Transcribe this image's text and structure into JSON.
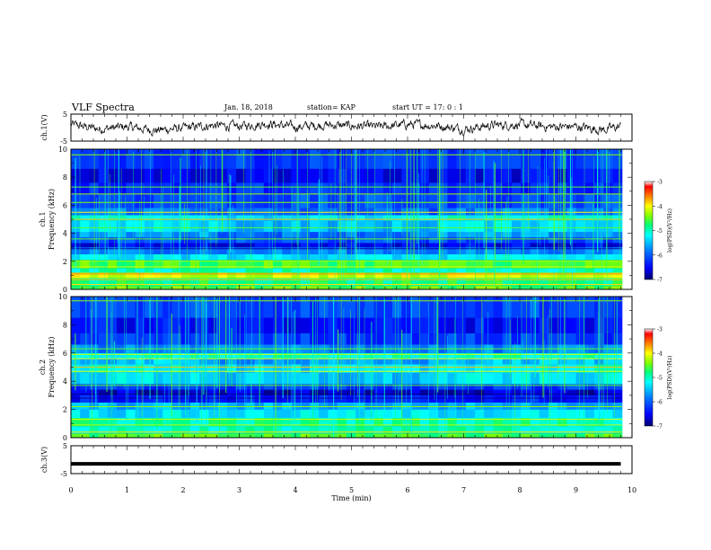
{
  "header": {
    "title": "VLF Spectra",
    "date": "Jan. 18, 2018",
    "station": "station= KAP",
    "start": "start  UT =   17: 0  : 1"
  },
  "colors": {
    "spectrogram_scale": [
      "#00007a",
      "#0000ff",
      "#0080ff",
      "#00e0ff",
      "#00ff90",
      "#80ff00",
      "#ffff00",
      "#ff8000",
      "#ff0000",
      "#ffffff"
    ],
    "waveform": "#000000"
  },
  "chart_data": [
    {
      "type": "line",
      "name": "ch1-waveform",
      "ylabel": "ch.1(V)",
      "ylim": [
        -5,
        5
      ],
      "yticks": [
        "5",
        "-5"
      ],
      "xlim": [
        0,
        10
      ],
      "description_values": {
        "x": [
          0,
          0.5,
          1,
          1.5,
          2,
          2.5,
          3,
          3.5,
          4,
          4.5,
          5,
          5.5,
          6,
          6.5,
          7,
          7.5,
          8,
          8.5,
          9,
          9.5,
          9.8
        ],
        "y": [
          1.2,
          -0.5,
          0.3,
          -1.0,
          -0.2,
          0.8,
          0.5,
          1.5,
          0.2,
          1.0,
          0.6,
          0.3,
          1.2,
          0.8,
          -0.6,
          0.9,
          1.1,
          0.3,
          0.4,
          -0.8,
          0.5
        ]
      }
    },
    {
      "type": "heatmap",
      "name": "ch1-spectrogram",
      "ylabel_top": "ch.1",
      "ylabel": "Frequency (kHz)",
      "ylim": [
        0,
        10
      ],
      "yticks": [
        "0",
        "2",
        "4",
        "6",
        "8",
        "10"
      ],
      "xlim": [
        0,
        10
      ],
      "colorbar": {
        "label": "log(PSD)(V²/Hz)",
        "range": [
          -7,
          -3
        ],
        "ticks": [
          "-3",
          "-4",
          "-5",
          "-6",
          "-7"
        ]
      }
    },
    {
      "type": "heatmap",
      "name": "ch2-spectrogram",
      "ylabel_top": "ch.2",
      "ylabel": "Frequency (kHz)",
      "ylim": [
        0,
        10
      ],
      "yticks": [
        "0",
        "2",
        "4",
        "6",
        "8",
        "10"
      ],
      "xlim": [
        0,
        10
      ],
      "colorbar": {
        "label": "log(PSD)(V²/Hz)",
        "range": [
          -7,
          -3
        ],
        "ticks": [
          "-3",
          "-4",
          "-5",
          "-6",
          "-7"
        ]
      }
    },
    {
      "type": "line",
      "name": "ch3-waveform",
      "ylabel": "ch.3(V)",
      "ylim": [
        -5,
        5
      ],
      "yticks": [
        "5",
        "-5"
      ],
      "xlim": [
        0,
        10
      ],
      "xlabel": "Time  (min)",
      "xticks": [
        "0",
        "1",
        "2",
        "3",
        "4",
        "5",
        "6",
        "7",
        "8",
        "9",
        "10"
      ],
      "values": {
        "x": [
          0,
          9.8
        ],
        "y": [
          -1.5,
          -1.5
        ]
      }
    }
  ]
}
